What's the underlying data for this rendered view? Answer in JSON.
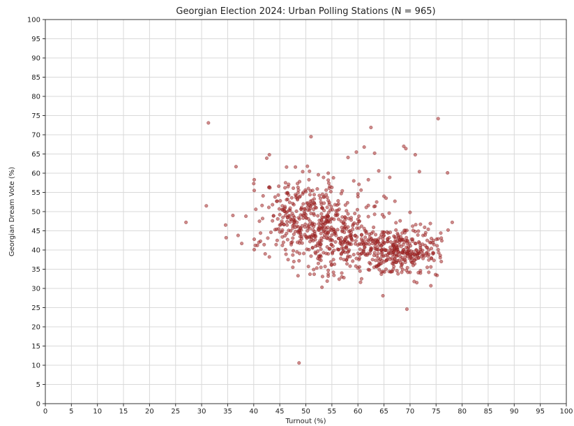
{
  "chart_data": {
    "type": "scatter",
    "title": "Georgian Election 2024: Urban Polling Stations (N = 965)",
    "xlabel": "Turnout (%)",
    "ylabel": "Georgian Dream Vote (%)",
    "xlim": [
      0,
      100
    ],
    "ylim": [
      0,
      100
    ],
    "xticks": [
      "0",
      "5",
      "10",
      "15",
      "20",
      "25",
      "30",
      "35",
      "40",
      "45",
      "50",
      "55",
      "60",
      "65",
      "70",
      "75",
      "80",
      "85",
      "90",
      "95",
      "100"
    ],
    "yticks": [
      "0",
      "5",
      "10",
      "15",
      "20",
      "25",
      "30",
      "35",
      "40",
      "45",
      "50",
      "55",
      "60",
      "65",
      "70",
      "75",
      "80",
      "85",
      "90",
      "95",
      "100"
    ],
    "grid": true,
    "marker_color": "#a52a2a",
    "points": [
      [
        31.3,
        73.1
      ],
      [
        75.4,
        74.2
      ],
      [
        62.5,
        71.9
      ],
      [
        51.0,
        69.5
      ],
      [
        68.8,
        67.0
      ],
      [
        69.2,
        66.4
      ],
      [
        61.2,
        66.8
      ],
      [
        59.7,
        65.5
      ],
      [
        71.0,
        64.8
      ],
      [
        43.0,
        64.8
      ],
      [
        42.5,
        63.9
      ],
      [
        63.2,
        65.2
      ],
      [
        58.1,
        64.1
      ],
      [
        36.6,
        61.7
      ],
      [
        46.3,
        61.6
      ],
      [
        49.4,
        60.4
      ],
      [
        71.8,
        60.4
      ],
      [
        77.2,
        60.1
      ],
      [
        40.1,
        58.3
      ],
      [
        40.0,
        57.3
      ],
      [
        43.0,
        56.4
      ],
      [
        46.5,
        54.8
      ],
      [
        44.8,
        56.6
      ],
      [
        47.6,
        56.1
      ],
      [
        30.9,
        51.5
      ],
      [
        27.0,
        47.2
      ],
      [
        34.6,
        46.5
      ],
      [
        34.7,
        43.2
      ],
      [
        37.0,
        43.8
      ],
      [
        37.7,
        41.7
      ],
      [
        36.0,
        49.0
      ],
      [
        38.5,
        48.8
      ],
      [
        40.1,
        40.1
      ],
      [
        41.3,
        44.4
      ],
      [
        41.0,
        42.0
      ],
      [
        42.2,
        39.0
      ],
      [
        43.0,
        38.2
      ],
      [
        41.7,
        48.2
      ],
      [
        43.6,
        47.6
      ],
      [
        48.7,
        10.6
      ],
      [
        64.8,
        28.1
      ],
      [
        69.4,
        24.6
      ],
      [
        71.3,
        31.5
      ],
      [
        78.1,
        47.2
      ],
      [
        76.0,
        43.1
      ],
      [
        74.6,
        37.3
      ],
      [
        73.2,
        39.3
      ],
      [
        72.8,
        45.9
      ],
      [
        75.8,
        38.0
      ],
      [
        64.0,
        60.6
      ],
      [
        66.1,
        58.9
      ],
      [
        54.4,
        57.4
      ],
      [
        55.3,
        58.8
      ],
      [
        59.2,
        58.0
      ],
      [
        62.0,
        58.3
      ],
      [
        53.9,
        55.6
      ],
      [
        65.0,
        54.0
      ],
      [
        57.0,
        55.4
      ],
      [
        60.0,
        54.6
      ],
      [
        56.9,
        33.0
      ],
      [
        60.7,
        32.5
      ],
      [
        67.7,
        33.8
      ],
      [
        70.0,
        34.2
      ],
      [
        52.1,
        35.3
      ],
      [
        48.7,
        37.2
      ],
      [
        46.2,
        38.9
      ],
      [
        44.3,
        41.4
      ],
      [
        45.5,
        45.2
      ],
      [
        47.2,
        47.9
      ],
      [
        46.0,
        51.3
      ],
      [
        48.4,
        53.4
      ],
      [
        50.5,
        56.0
      ],
      [
        52.6,
        54.2
      ],
      [
        58.0,
        52.3
      ],
      [
        61.6,
        51.1
      ],
      [
        63.6,
        52.5
      ],
      [
        66.0,
        49.6
      ],
      [
        67.3,
        47.1
      ],
      [
        69.0,
        44.5
      ],
      [
        70.5,
        42.3
      ],
      [
        72.0,
        41.1
      ],
      [
        71.4,
        38.5
      ],
      [
        68.5,
        36.4
      ],
      [
        66.8,
        35.0
      ],
      [
        63.5,
        35.8
      ],
      [
        59.0,
        37.1
      ],
      [
        55.5,
        36.3
      ]
    ]
  }
}
